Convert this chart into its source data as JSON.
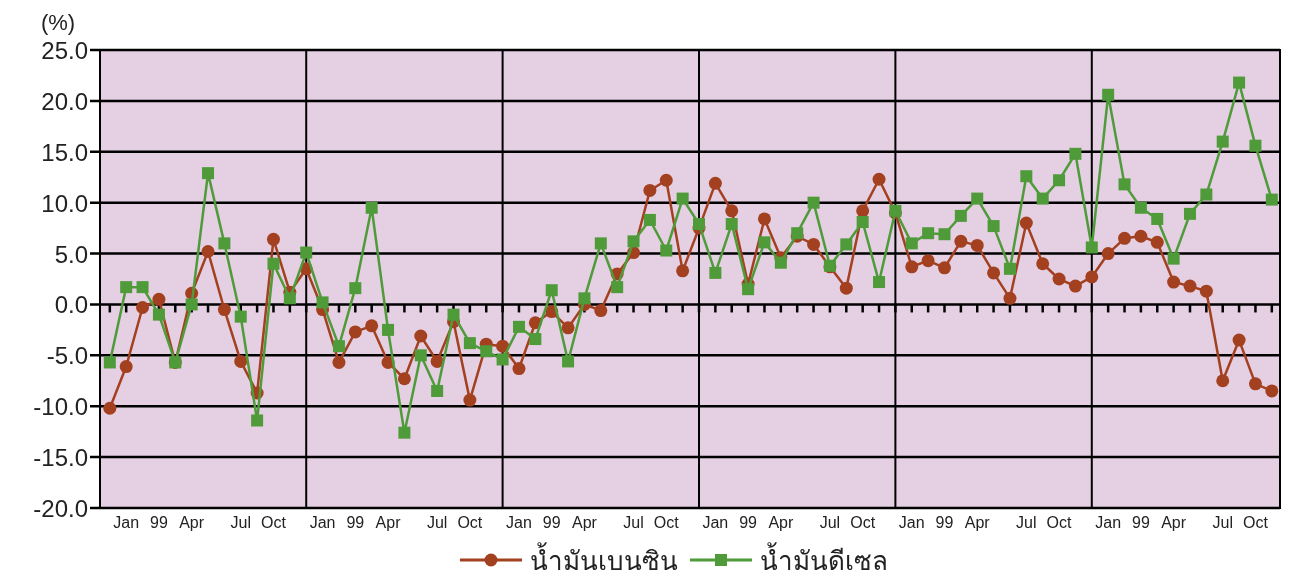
{
  "chart_data": {
    "type": "line",
    "ylabel": "(%)",
    "categories": [
      null,
      "Jan",
      null,
      "99",
      null,
      "Apr",
      null,
      null,
      "Jul",
      null,
      "Oct",
      null,
      null,
      "Jan",
      null,
      "99",
      null,
      "Apr",
      null,
      null,
      "Jul",
      null,
      "Oct",
      null,
      null,
      "Jan",
      null,
      "99",
      null,
      "Apr",
      null,
      null,
      "Jul",
      null,
      "Oct",
      null,
      null,
      "Jan",
      null,
      "99",
      null,
      "Apr",
      null,
      null,
      "Jul",
      null,
      "Oct",
      null,
      null,
      "Jan",
      null,
      "99",
      null,
      "Apr",
      null,
      null,
      "Jul",
      null,
      "Oct",
      null,
      null,
      "Jan",
      null,
      "99",
      null,
      "Apr",
      null,
      null,
      "Jul",
      null,
      "Oct",
      null
    ],
    "series": [
      {
        "name": "น้ำมันเบนซิน",
        "color": "#a3401f",
        "marker": "circle",
        "values": [
          -10.2,
          -6.1,
          -0.3,
          0.5,
          -5.7,
          1.1,
          5.2,
          -0.5,
          -5.6,
          -8.7,
          6.4,
          1.2,
          3.5,
          -0.5,
          -5.7,
          -2.7,
          -2.1,
          -5.7,
          -7.3,
          -3.1,
          -5.6,
          -1.7,
          -9.4,
          -3.9,
          -4.1,
          -6.3,
          -1.8,
          -0.7,
          -2.3,
          0.0,
          -0.6,
          3.0,
          5.1,
          11.2,
          12.2,
          3.3,
          7.5,
          11.9,
          9.2,
          2.0,
          8.4,
          4.6,
          6.7,
          5.9,
          3.7,
          1.6,
          9.2,
          12.3,
          9.0,
          3.7,
          4.3,
          3.6,
          6.2,
          5.8,
          3.1,
          0.6,
          8.0,
          4.0,
          2.5,
          1.8,
          2.7,
          5.0,
          6.5,
          6.7,
          6.1,
          2.2,
          1.8,
          1.3,
          -7.5,
          -3.5,
          -7.8,
          -8.5
        ]
      },
      {
        "name": "น้ำมันดีเซล",
        "color": "#4f9b3a",
        "marker": "square",
        "values": [
          -5.7,
          1.7,
          1.7,
          -1.0,
          -5.7,
          0.0,
          12.9,
          6.0,
          -1.2,
          -11.4,
          4.0,
          0.6,
          5.1,
          0.2,
          -4.1,
          1.6,
          9.5,
          -2.5,
          -12.6,
          -5.0,
          -8.5,
          -1.0,
          -3.8,
          -4.6,
          -5.4,
          -2.2,
          -3.4,
          1.4,
          -5.6,
          0.6,
          6.0,
          1.7,
          6.2,
          8.3,
          5.3,
          10.4,
          7.9,
          3.1,
          7.9,
          1.5,
          6.1,
          4.1,
          7.0,
          10.0,
          3.8,
          5.9,
          8.1,
          2.2,
          9.2,
          6.0,
          7.0,
          6.9,
          8.7,
          10.4,
          7.7,
          3.5,
          12.6,
          10.4,
          12.2,
          14.8,
          5.6,
          20.6,
          11.8,
          9.5,
          8.4,
          4.5,
          8.9,
          10.8,
          16.0,
          21.8,
          15.6,
          10.3
        ]
      }
    ],
    "ylim": [
      -20,
      25
    ],
    "yticks": [
      {
        "value": -20,
        "label": "-20.0"
      },
      {
        "value": -15,
        "label": "-15.0"
      },
      {
        "value": -10,
        "label": "-10.0"
      },
      {
        "value": -5,
        "label": "-5.0"
      },
      {
        "value": 0,
        "label": "0.0"
      },
      {
        "value": 5,
        "label": "5.0"
      },
      {
        "value": 10,
        "label": "10.0"
      },
      {
        "value": 15,
        "label": "15.0"
      },
      {
        "value": 20,
        "label": "20.0"
      },
      {
        "value": 25,
        "label": "25.0"
      }
    ],
    "grid": true,
    "legend": "bottom"
  }
}
